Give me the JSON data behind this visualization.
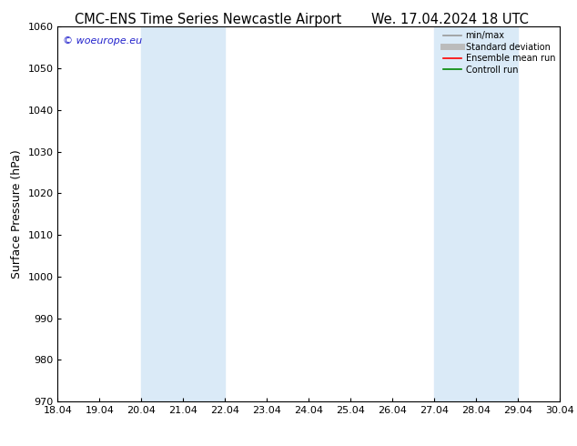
{
  "title_left": "CMC-ENS Time Series Newcastle Airport",
  "title_right": "We. 17.04.2024 18 UTC",
  "ylabel": "Surface Pressure (hPa)",
  "ylim": [
    970,
    1060
  ],
  "yticks": [
    970,
    980,
    990,
    1000,
    1010,
    1020,
    1030,
    1040,
    1050,
    1060
  ],
  "xlim_min": 0,
  "xlim_max": 12,
  "xtick_labels": [
    "18.04",
    "19.04",
    "20.04",
    "21.04",
    "22.04",
    "23.04",
    "24.04",
    "25.04",
    "26.04",
    "27.04",
    "28.04",
    "29.04",
    "30.04"
  ],
  "xtick_positions": [
    0,
    1,
    2,
    3,
    4,
    5,
    6,
    7,
    8,
    9,
    10,
    11,
    12
  ],
  "shaded_regions": [
    {
      "xmin": 2,
      "xmax": 4,
      "color": "#daeaf7"
    },
    {
      "xmin": 9,
      "xmax": 11,
      "color": "#daeaf7"
    }
  ],
  "watermark": "© woeurope.eu",
  "watermark_color": "#2222cc",
  "background_color": "#ffffff",
  "legend_entries": [
    {
      "label": "min/max",
      "color": "#999999",
      "lw": 1.2,
      "style": "-"
    },
    {
      "label": "Standard deviation",
      "color": "#bbbbbb",
      "lw": 5,
      "style": "-"
    },
    {
      "label": "Ensemble mean run",
      "color": "#ff0000",
      "lw": 1.2,
      "style": "-"
    },
    {
      "label": "Controll run",
      "color": "#008800",
      "lw": 1.2,
      "style": "-"
    }
  ],
  "title_fontsize": 10.5,
  "ylabel_fontsize": 9,
  "tick_fontsize": 8,
  "legend_fontsize": 7,
  "watermark_fontsize": 8
}
